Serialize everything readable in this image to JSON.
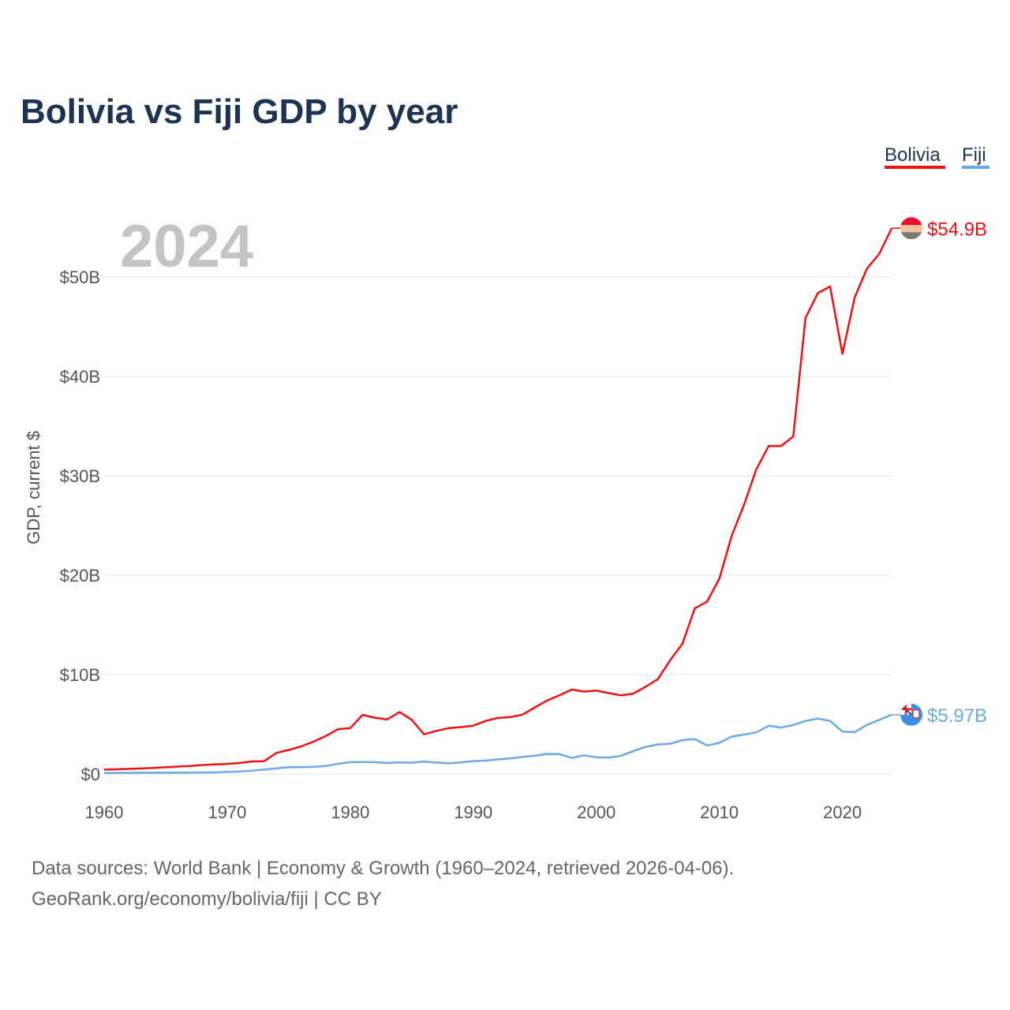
{
  "colors": {
    "bolivia": "#ee1111",
    "fiji": "#6aaae8",
    "title": "#1c3352",
    "text": "#555555",
    "watermark": "#c4c4c4"
  },
  "icons": {
    "bolivia_marker": "bolivia-flag-icon",
    "fiji_marker": "fiji-flag-icon"
  },
  "chart_data": {
    "type": "line",
    "title": "Bolivia vs Fiji GDP by year",
    "ylabel": "GDP, current $",
    "xlabel": "",
    "year_watermark": "2024",
    "xlim": [
      1960,
      2024
    ],
    "ylim": [
      0,
      50000000000
    ],
    "x_ticks": [
      1960,
      1970,
      1980,
      1990,
      2000,
      2010,
      2020
    ],
    "x_tick_labels": [
      "1960",
      "1970",
      "1980",
      "1990",
      "2000",
      "2010",
      "2020"
    ],
    "y_ticks": [
      0,
      10000000000,
      20000000000,
      30000000000,
      40000000000,
      50000000000
    ],
    "y_tick_labels": [
      "$0",
      "$10B",
      "$20B",
      "$30B",
      "$40B",
      "$50B"
    ],
    "legend": [
      "Bolivia",
      "Fiji"
    ],
    "legend_position": "top-right",
    "x": [
      1960,
      1961,
      1962,
      1963,
      1964,
      1965,
      1966,
      1967,
      1968,
      1969,
      1970,
      1971,
      1972,
      1973,
      1974,
      1975,
      1976,
      1977,
      1978,
      1979,
      1980,
      1981,
      1982,
      1983,
      1984,
      1985,
      1986,
      1987,
      1988,
      1989,
      1990,
      1991,
      1992,
      1993,
      1994,
      1995,
      1996,
      1997,
      1998,
      1999,
      2000,
      2001,
      2002,
      2003,
      2004,
      2005,
      2006,
      2007,
      2008,
      2009,
      2010,
      2011,
      2012,
      2013,
      2014,
      2015,
      2016,
      2017,
      2018,
      2019,
      2020,
      2021,
      2022,
      2023,
      2024
    ],
    "series": [
      {
        "name": "Bolivia",
        "end_label": "$54.9B",
        "values": [
          0.45,
          0.48,
          0.52,
          0.56,
          0.62,
          0.68,
          0.75,
          0.82,
          0.91,
          0.98,
          1.02,
          1.11,
          1.27,
          1.29,
          2.13,
          2.43,
          2.78,
          3.25,
          3.82,
          4.51,
          4.62,
          5.95,
          5.67,
          5.5,
          6.24,
          5.45,
          4.0,
          4.34,
          4.62,
          4.72,
          4.87,
          5.34,
          5.64,
          5.73,
          5.98,
          6.71,
          7.4,
          7.93,
          8.5,
          8.29,
          8.4,
          8.14,
          7.91,
          8.09,
          8.78,
          9.55,
          11.45,
          13.12,
          16.67,
          17.34,
          19.65,
          23.96,
          27.08,
          30.66,
          32.99,
          33.0,
          33.94,
          45.87,
          48.37,
          49.04,
          42.27,
          47.95,
          50.86,
          52.34,
          54.9
        ]
      },
      {
        "name": "Fiji",
        "end_label": "$5.97B",
        "values": [
          0.11,
          0.12,
          0.12,
          0.13,
          0.13,
          0.14,
          0.14,
          0.15,
          0.16,
          0.17,
          0.22,
          0.26,
          0.33,
          0.45,
          0.57,
          0.69,
          0.69,
          0.72,
          0.82,
          1.02,
          1.2,
          1.21,
          1.19,
          1.12,
          1.17,
          1.14,
          1.26,
          1.16,
          1.08,
          1.17,
          1.3,
          1.36,
          1.48,
          1.58,
          1.72,
          1.85,
          2.02,
          2.0,
          1.62,
          1.89,
          1.68,
          1.66,
          1.84,
          2.31,
          2.73,
          2.98,
          3.05,
          3.41,
          3.52,
          2.87,
          3.14,
          3.77,
          3.97,
          4.19,
          4.86,
          4.68,
          4.93,
          5.35,
          5.58,
          5.35,
          4.27,
          4.23,
          4.95,
          5.45,
          5.97
        ]
      }
    ]
  },
  "source": {
    "line1": "Data sources: World Bank | Economy & Growth (1960–2024, retrieved 2026-04-06).",
    "line2": "GeoRank.org/economy/bolivia/fiji | CC BY"
  }
}
